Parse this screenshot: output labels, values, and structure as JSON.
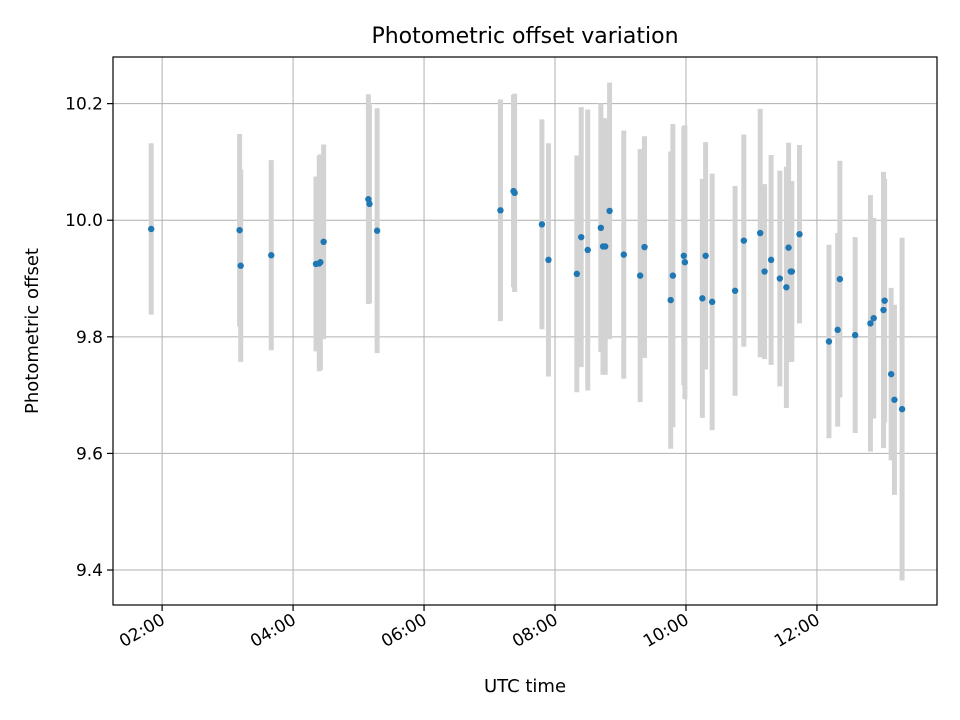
{
  "chart_data": {
    "type": "scatter",
    "title": "Photometric offset variation",
    "xlabel": "UTC time",
    "ylabel": "Photometric offset",
    "x_format": "HH:MM",
    "xlim": [
      "01:15",
      "13:50"
    ],
    "ylim": [
      9.34,
      10.28
    ],
    "x_ticks": [
      "02:00",
      "04:00",
      "06:00",
      "08:00",
      "10:00",
      "12:00"
    ],
    "y_ticks": [
      9.4,
      9.6,
      9.8,
      10.0,
      10.2
    ],
    "y_tick_labels": [
      "9.4",
      "9.6",
      "9.8",
      "10.0",
      "10.2"
    ],
    "grid": true,
    "legend": "none",
    "colors": {
      "point": "#1f77b4",
      "errorbar": "#d3d3d3",
      "grid": "#b0b0b0"
    },
    "series": [
      {
        "x": [
          "01:50",
          "03:11",
          "03:12",
          "03:40",
          "04:21",
          "04:24",
          "04:25",
          "04:28",
          "05:09",
          "05:10",
          "05:17",
          "07:10",
          "07:22",
          "07:23",
          "07:48",
          "07:54",
          "08:20",
          "08:24",
          "08:30",
          "08:42",
          "08:44",
          "08:46",
          "08:50",
          "09:03",
          "09:18",
          "09:22",
          "09:46",
          "09:48",
          "09:58",
          "09:59",
          "10:15",
          "10:18",
          "10:24",
          "10:45",
          "10:53",
          "11:08",
          "11:12",
          "11:18",
          "11:26",
          "11:32",
          "11:34",
          "11:36",
          "11:37",
          "11:44",
          "12:11",
          "12:19",
          "12:21",
          "12:35",
          "12:49",
          "12:52",
          "13:01",
          "13:02",
          "13:08",
          "13:11",
          "13:18"
        ],
        "y": [
          9.985,
          9.983,
          9.922,
          9.94,
          9.925,
          9.926,
          9.928,
          9.963,
          10.036,
          10.028,
          9.982,
          10.017,
          10.05,
          10.047,
          9.993,
          9.932,
          9.908,
          9.971,
          9.949,
          9.987,
          9.955,
          9.955,
          10.016,
          9.941,
          9.905,
          9.954,
          9.863,
          9.905,
          9.939,
          9.928,
          9.866,
          9.939,
          9.86,
          9.879,
          9.965,
          9.978,
          9.912,
          9.932,
          9.9,
          9.885,
          9.953,
          9.912,
          9.912,
          9.976,
          9.792,
          9.812,
          9.899,
          9.803,
          9.823,
          9.832,
          9.846,
          9.862,
          9.736,
          9.692,
          9.676
        ],
        "yerr": [
          0.147,
          0.165,
          0.165,
          0.163,
          0.15,
          0.185,
          0.185,
          0.167,
          0.18,
          0.17,
          0.21,
          0.19,
          0.165,
          0.17,
          0.18,
          0.2,
          0.203,
          0.223,
          0.241,
          0.213,
          0.22,
          0.22,
          0.22,
          0.213,
          0.217,
          0.19,
          0.255,
          0.26,
          0.222,
          0.235,
          0.205,
          0.195,
          0.22,
          0.18,
          0.182,
          0.213,
          0.15,
          0.18,
          0.185,
          0.207,
          0.18,
          0.155,
          0.155,
          0.153,
          0.166,
          0.166,
          0.203,
          0.168,
          0.22,
          0.172,
          0.237,
          0.209,
          0.148,
          0.163,
          0.294
        ]
      }
    ]
  }
}
